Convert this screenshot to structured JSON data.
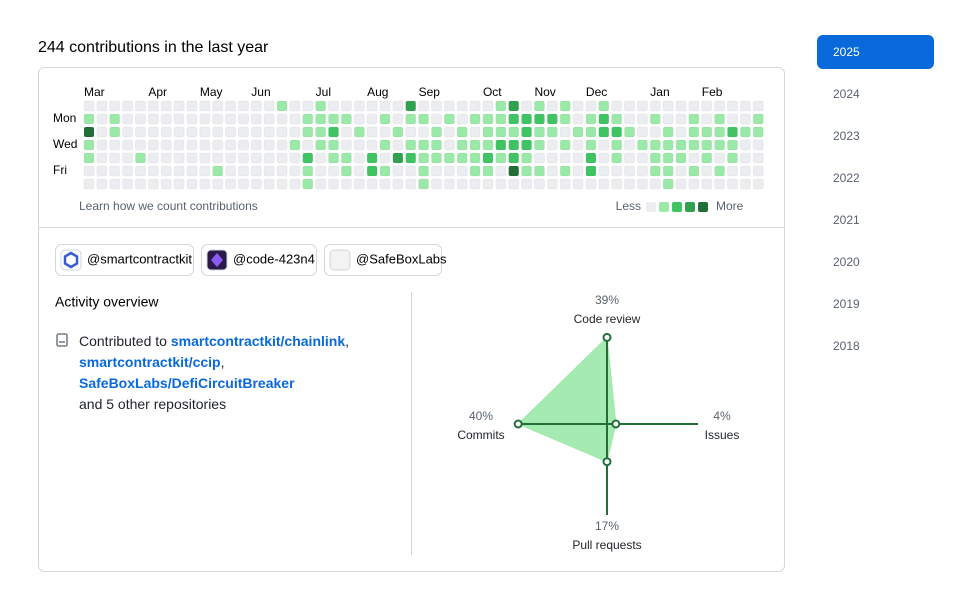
{
  "header": {
    "title": "244 contributions in the last year"
  },
  "contributions": {
    "months": [
      "Mar",
      "Apr",
      "May",
      "Jun",
      "Jul",
      "Aug",
      "Sep",
      "Oct",
      "Nov",
      "Dec",
      "Jan",
      "Feb"
    ],
    "days": [
      "Mon",
      "Wed",
      "Fri"
    ],
    "colors": [
      "#ebedf0",
      "#9be9a8",
      "#40c463",
      "#30a14e",
      "#216e39"
    ],
    "weeks": [
      [
        0,
        1,
        4,
        1,
        1,
        0,
        0
      ],
      [
        0,
        0,
        0,
        0,
        0,
        0,
        0
      ],
      [
        0,
        1,
        1,
        0,
        0,
        0,
        0
      ],
      [
        0,
        0,
        0,
        0,
        0,
        0,
        0
      ],
      [
        0,
        0,
        0,
        0,
        1,
        0,
        0
      ],
      [
        0,
        0,
        0,
        0,
        0,
        0,
        0
      ],
      [
        0,
        0,
        0,
        0,
        0,
        0,
        0
      ],
      [
        0,
        0,
        0,
        0,
        0,
        0,
        0
      ],
      [
        0,
        0,
        0,
        0,
        0,
        0,
        0
      ],
      [
        0,
        0,
        0,
        0,
        0,
        0,
        0
      ],
      [
        0,
        0,
        0,
        0,
        0,
        1,
        0
      ],
      [
        0,
        0,
        0,
        0,
        0,
        0,
        0
      ],
      [
        0,
        0,
        0,
        0,
        0,
        0,
        0
      ],
      [
        0,
        0,
        0,
        0,
        0,
        0,
        0
      ],
      [
        0,
        0,
        0,
        0,
        0,
        0,
        0
      ],
      [
        1,
        0,
        0,
        0,
        0,
        0,
        0
      ],
      [
        0,
        0,
        0,
        1,
        0,
        0,
        0
      ],
      [
        0,
        1,
        1,
        0,
        2,
        1,
        1
      ],
      [
        1,
        1,
        1,
        1,
        0,
        0,
        0
      ],
      [
        0,
        1,
        2,
        1,
        1,
        0,
        0
      ],
      [
        0,
        1,
        0,
        0,
        1,
        1,
        0
      ],
      [
        0,
        0,
        1,
        0,
        0,
        0,
        0
      ],
      [
        0,
        0,
        0,
        0,
        2,
        2,
        0
      ],
      [
        0,
        1,
        0,
        1,
        0,
        1,
        0
      ],
      [
        0,
        0,
        1,
        0,
        3,
        0,
        0
      ],
      [
        3,
        1,
        0,
        1,
        2,
        0,
        0
      ],
      [
        0,
        1,
        0,
        1,
        1,
        1,
        1
      ],
      [
        0,
        0,
        1,
        1,
        1,
        0,
        0
      ],
      [
        0,
        1,
        0,
        0,
        1,
        0,
        0
      ],
      [
        0,
        0,
        1,
        1,
        1,
        0,
        0
      ],
      [
        0,
        1,
        0,
        1,
        1,
        1,
        0
      ],
      [
        0,
        1,
        1,
        1,
        2,
        1,
        0
      ],
      [
        1,
        1,
        1,
        2,
        1,
        0,
        0
      ],
      [
        3,
        2,
        1,
        2,
        2,
        4,
        0
      ],
      [
        0,
        2,
        2,
        2,
        1,
        1,
        0
      ],
      [
        1,
        2,
        1,
        1,
        0,
        1,
        0
      ],
      [
        0,
        2,
        1,
        0,
        0,
        0,
        0
      ],
      [
        1,
        1,
        0,
        1,
        0,
        1,
        0
      ],
      [
        0,
        0,
        1,
        0,
        0,
        0,
        0
      ],
      [
        0,
        1,
        1,
        1,
        2,
        2,
        0
      ],
      [
        1,
        2,
        2,
        0,
        0,
        0,
        0
      ],
      [
        0,
        1,
        2,
        1,
        1,
        0,
        0
      ],
      [
        0,
        0,
        1,
        0,
        0,
        0,
        0
      ],
      [
        0,
        0,
        0,
        1,
        0,
        0,
        0
      ],
      [
        0,
        1,
        0,
        1,
        1,
        1,
        0
      ],
      [
        0,
        0,
        1,
        1,
        1,
        1,
        1
      ],
      [
        0,
        0,
        0,
        1,
        1,
        0,
        0
      ],
      [
        0,
        1,
        1,
        1,
        0,
        1,
        0
      ],
      [
        0,
        0,
        1,
        1,
        1,
        0,
        0
      ],
      [
        0,
        1,
        1,
        1,
        0,
        1,
        0
      ],
      [
        0,
        0,
        2,
        1,
        1,
        0,
        0
      ],
      [
        0,
        0,
        1,
        0,
        0,
        0,
        0
      ],
      [
        0,
        1,
        1,
        0,
        0,
        0,
        0
      ]
    ],
    "learn_link": "Learn how we count contributions",
    "legend_less": "Less",
    "legend_more": "More"
  },
  "orgs": [
    "@smartcontractkit",
    "@code-423n4",
    "@SafeBoxLabs"
  ],
  "activity": {
    "title": "Activity overview",
    "prefix": "Contributed to",
    "repos": [
      "smartcontractkit/chainlink",
      "smartcontractkit/ccip",
      "SafeBoxLabs/DefiCircuitBreaker"
    ],
    "separator": ",",
    "suffix": "and 5 other repositories"
  },
  "chart_data": {
    "type": "radar",
    "categories": [
      "Code review",
      "Issues",
      "Pull requests",
      "Commits"
    ],
    "values": [
      39,
      4,
      17,
      40
    ],
    "value_labels": [
      "39%",
      "4%",
      "17%",
      "40%"
    ],
    "color": "#216e39",
    "fill": "#9be9a8"
  },
  "years": [
    "2025",
    "2024",
    "2023",
    "2022",
    "2021",
    "2020",
    "2019",
    "2018"
  ],
  "selected_year": "2025"
}
